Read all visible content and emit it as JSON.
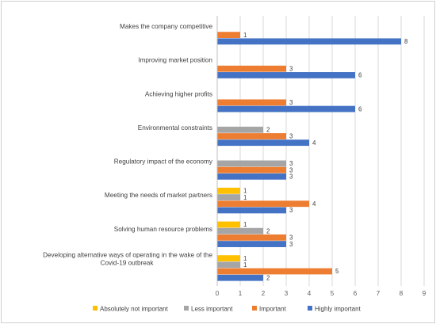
{
  "chart_data": {
    "type": "bar",
    "orientation": "horizontal",
    "title": "",
    "xlabel": "",
    "ylabel": "",
    "xlim": [
      0,
      9
    ],
    "x_ticks": [
      0,
      1,
      2,
      3,
      4,
      5,
      6,
      7,
      8,
      9
    ],
    "grid": "vertical",
    "legend_position": "bottom",
    "categories": [
      "Makes the company competitive",
      "Improving market position",
      "Achieving higher profits",
      "Environmental constraints",
      "Regulatory impact of the economy",
      "Meeting the needs of market partners",
      "Solving human resource problems",
      "Developing alternative ways of operating in the wake of the Covid-19 outbreak"
    ],
    "series": [
      {
        "name": "Absolutely not important",
        "color": "#FFC000",
        "values": [
          null,
          null,
          null,
          null,
          null,
          1,
          1,
          1
        ]
      },
      {
        "name": "Less important",
        "color": "#A5A5A5",
        "values": [
          null,
          null,
          null,
          2,
          3,
          1,
          2,
          1
        ]
      },
      {
        "name": "Important",
        "color": "#ED7D31",
        "values": [
          1,
          3,
          3,
          3,
          3,
          4,
          3,
          5
        ]
      },
      {
        "name": "Highly important",
        "color": "#4472C4",
        "values": [
          8,
          6,
          6,
          4,
          3,
          3,
          3,
          2
        ]
      }
    ]
  }
}
